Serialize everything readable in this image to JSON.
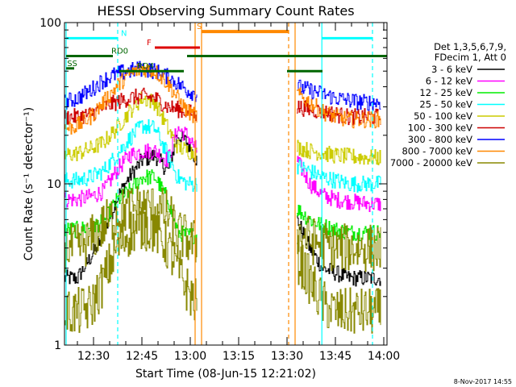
{
  "chart_data": {
    "type": "line",
    "title": "HESSI Observing Summary Count Rates",
    "xlabel": "Start Time (08-Jun-15 12:21:02)",
    "ylabel": "Count Rate (s⁻¹ detector⁻¹)",
    "footer": "8-Nov-2017 14:55",
    "yscale": "log",
    "ylim": [
      1,
      100
    ],
    "xlim_minutes_from_start": [
      0,
      100
    ],
    "y_ticks": [
      {
        "v": 1,
        "label": "1"
      },
      {
        "v": 10,
        "label": "10"
      },
      {
        "v": 100,
        "label": "100"
      }
    ],
    "x_ticks": [
      {
        "t": 9,
        "label": "12:30"
      },
      {
        "t": 24,
        "label": "12:45"
      },
      {
        "t": 39,
        "label": "13:00"
      },
      {
        "t": 54,
        "label": "13:15"
      },
      {
        "t": 69,
        "label": "13:30"
      },
      {
        "t": 84,
        "label": "13:45"
      },
      {
        "t": 99,
        "label": "14:00"
      }
    ],
    "legend": {
      "header": [
        "Det 1,3,5,6,7,9,",
        "FDecim 1, Att 0"
      ],
      "entries": [
        {
          "name": "3 - 6 keV",
          "color": "#000000"
        },
        {
          "name": "6 - 12 keV",
          "color": "#ff00ff"
        },
        {
          "name": "12 - 25 keV",
          "color": "#00ee00"
        },
        {
          "name": "25 - 50 keV",
          "color": "#00ffff"
        },
        {
          "name": "50 - 100 keV",
          "color": "#cccc00"
        },
        {
          "name": "100 - 300 keV",
          "color": "#cc0000"
        },
        {
          "name": "300 - 800 keV",
          "color": "#0000ff"
        },
        {
          "name": "800 - 7000 keV",
          "color": "#ff8800"
        },
        {
          "name": "7000 - 20000 keV",
          "color": "#888800"
        }
      ]
    },
    "vertical_markers": [
      {
        "t": 0.5,
        "color": "#00ffff",
        "style": "solid"
      },
      {
        "t": 16.5,
        "color": "#00ffff",
        "style": "dashed"
      },
      {
        "t": 42.5,
        "color": "#ff8800",
        "style": "solid"
      },
      {
        "t": 40.5,
        "color": "#ff8800",
        "style": "solid"
      },
      {
        "t": 69.5,
        "color": "#ff8800",
        "style": "dashed"
      },
      {
        "t": 71.5,
        "color": "#ff8800",
        "style": "solid"
      },
      {
        "t": 79.8,
        "color": "#00ffff",
        "style": "solid"
      },
      {
        "t": 95.5,
        "color": "#00ffff",
        "style": "dashed"
      }
    ],
    "flag_bars": [
      {
        "label": "N",
        "color": "#00ffff",
        "y": 80,
        "segments": [
          [
            0.5,
            16.5
          ],
          [
            79.8,
            95.5
          ]
        ],
        "label_t": 17.5
      },
      {
        "label": "RD0",
        "color": "#006600",
        "y": 62,
        "segments": [
          [
            0.5,
            15
          ],
          [
            38,
            100
          ]
        ],
        "label_t": 14.5
      },
      {
        "label": "RD4",
        "color": "#006600",
        "y": 50,
        "segments": [
          [
            17,
            37
          ],
          [
            69,
            80
          ]
        ],
        "label_t": 22.5
      },
      {
        "label": "F",
        "color": "#dd0000",
        "y": 70,
        "segments": [
          [
            28,
            42
          ]
        ],
        "label_t": 25.5
      },
      {
        "label": "S",
        "color": "#ff8800",
        "y": 88,
        "segments": [
          [
            42.5,
            69.5
          ]
        ],
        "label_t": 41
      },
      {
        "label": "SS",
        "color": "#006600",
        "y": 52,
        "segments": [
          [
            0.5,
            3
          ]
        ],
        "label_t": 0.8
      }
    ],
    "x": [
      0,
      4,
      8,
      12,
      16,
      20,
      24,
      28,
      32,
      35,
      38,
      41,
      72,
      76,
      80,
      84,
      88,
      92,
      96,
      98
    ],
    "series": [
      {
        "name": "3 - 6 keV",
        "color": "#000000",
        "values": [
          2.6,
          2.6,
          3.5,
          4.8,
          8,
          11,
          14,
          15,
          12,
          20,
          18,
          14,
          6,
          4,
          3,
          2.8,
          2.6,
          2.6,
          2.6,
          2.6
        ]
      },
      {
        "name": "6 - 12 keV",
        "color": "#ff00ff",
        "values": [
          8,
          8,
          8.3,
          9,
          12,
          15,
          16,
          16,
          14,
          22,
          20,
          16,
          14,
          10,
          8.5,
          8,
          7.8,
          7.6,
          7.5,
          7.5
        ]
      },
      {
        "name": "12 - 25 keV",
        "color": "#00ee00",
        "values": [
          5.2,
          5.2,
          5.4,
          5.8,
          7.8,
          9,
          11,
          11,
          8,
          5,
          4.8,
          4.8,
          7,
          6,
          5.5,
          5.2,
          5,
          5,
          5,
          5
        ]
      },
      {
        "name": "25 - 50 keV",
        "color": "#00ffff",
        "values": [
          10.5,
          10.5,
          11,
          12,
          15,
          19,
          23,
          22,
          15,
          11,
          10,
          10,
          13,
          12,
          11,
          10.5,
          10,
          10,
          10,
          10
        ]
      },
      {
        "name": "50 - 100 keV",
        "color": "#cccc00",
        "values": [
          15,
          15.5,
          16.5,
          18,
          22,
          28,
          34,
          32,
          22,
          17,
          16,
          15.5,
          17,
          16,
          15.5,
          15,
          14.8,
          14.6,
          14.5,
          14.5
        ]
      },
      {
        "name": "100 - 300 keV",
        "color": "#cc0000",
        "values": [
          26,
          26,
          27,
          30,
          32,
          34,
          35,
          34,
          30,
          29,
          28,
          27,
          30,
          29,
          28,
          27,
          26,
          26,
          26,
          26
        ]
      },
      {
        "name": "300 - 800 keV",
        "color": "#0000ff",
        "values": [
          32,
          34,
          38,
          44,
          48,
          50,
          52,
          50,
          46,
          42,
          38,
          36,
          40,
          38,
          36,
          34,
          33,
          32,
          32,
          32
        ]
      },
      {
        "name": "800 - 7000 keV",
        "color": "#ff8800",
        "values": [
          22,
          23,
          26,
          32,
          40,
          48,
          52,
          50,
          42,
          34,
          28,
          26,
          36,
          32,
          28,
          26,
          25,
          25,
          25,
          25
        ]
      },
      {
        "name": "7000 - 20000 keV",
        "color": "#888800",
        "values": [
          1.6,
          1.6,
          1.7,
          2.5,
          4,
          5,
          5.5,
          5.2,
          4,
          3,
          2.2,
          1.8,
          3.5,
          2.5,
          1.8,
          1.6,
          1.6,
          1.6,
          1.6,
          1.6
        ]
      },
      {
        "name": "7000 - 20000 keV upper",
        "color": "#888800",
        "values": [
          4,
          4,
          4.5,
          5.5,
          6.5,
          7,
          7.2,
          7,
          6.5,
          5,
          4.5,
          4.2,
          5,
          4.5,
          4.2,
          4,
          4,
          4,
          4,
          4
        ]
      }
    ],
    "gaps": [
      [
        41,
        72
      ]
    ]
  }
}
